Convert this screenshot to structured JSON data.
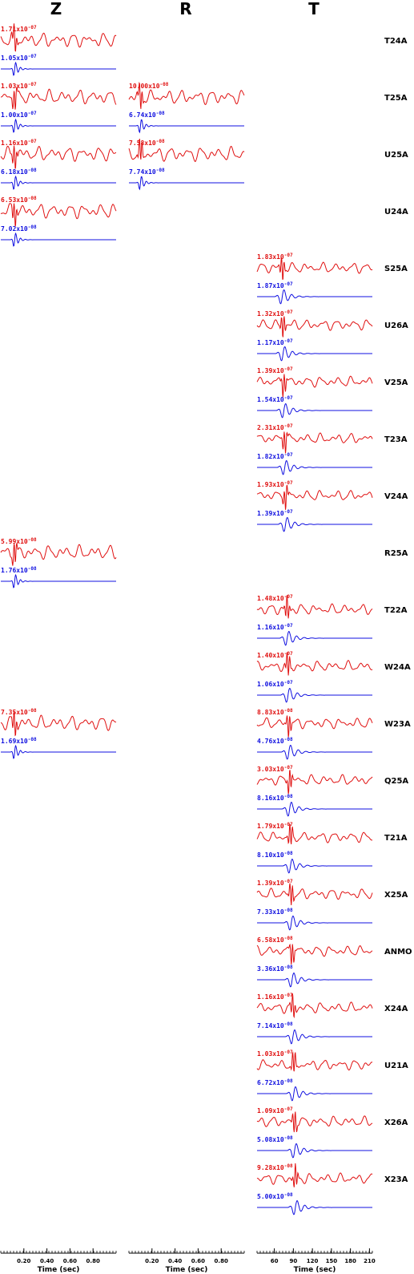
{
  "columns": [
    "Z",
    "R",
    "T"
  ],
  "stations": [
    "T24A",
    "T25A",
    "U25A",
    "U24A",
    "S25A",
    "U26A",
    "V25A",
    "T23A",
    "V24A",
    "R25A",
    "T22A",
    "W24A",
    "W23A",
    "Q25A",
    "T21A",
    "X25A",
    "ANMO",
    "X24A",
    "U21A",
    "X26A",
    "X23A"
  ],
  "colors": {
    "data": "#e01010",
    "synthetic": "#1010e0",
    "axis": "#000000"
  },
  "chart_data": {
    "type": "line",
    "axes": [
      {
        "column": "Z",
        "xlabel": "Time (sec)",
        "tick_labels": [
          "0.20",
          "0.40",
          "0.60",
          "0.80"
        ]
      },
      {
        "column": "R",
        "xlabel": "Time (sec)",
        "tick_labels": [
          "0.20",
          "0.40",
          "0.60",
          "0.80"
        ]
      },
      {
        "column": "T",
        "xlabel": "Time (sec)",
        "tick_labels": [
          "60",
          "90",
          "120",
          "150",
          "180",
          "210"
        ]
      }
    ],
    "legend": {
      "data_color": "#e01010",
      "synthetic_color": "#1010e0"
    },
    "traces": [
      {
        "station": "T24A",
        "column": "Z",
        "data_amp": {
          "m": "1.71",
          "e": "-07"
        },
        "syn_amp": {
          "m": "1.05",
          "e": "-07"
        }
      },
      {
        "station": "T25A",
        "column": "Z",
        "data_amp": {
          "m": "1.03",
          "e": "-07"
        },
        "syn_amp": {
          "m": "1.00",
          "e": "-07"
        }
      },
      {
        "station": "T25A",
        "column": "R",
        "data_amp": {
          "m": "10.00",
          "e": "-08"
        },
        "syn_amp": {
          "m": "6.74",
          "e": "-08"
        }
      },
      {
        "station": "U25A",
        "column": "Z",
        "data_amp": {
          "m": "1.16",
          "e": "-07"
        },
        "syn_amp": {
          "m": "6.18",
          "e": "-08"
        }
      },
      {
        "station": "U25A",
        "column": "R",
        "data_amp": {
          "m": "7.58",
          "e": "-08"
        },
        "syn_amp": {
          "m": "7.74",
          "e": "-08"
        }
      },
      {
        "station": "U24A",
        "column": "Z",
        "data_amp": {
          "m": "6.53",
          "e": "-08"
        },
        "syn_amp": {
          "m": "7.02",
          "e": "-08"
        }
      },
      {
        "station": "S25A",
        "column": "T",
        "data_amp": {
          "m": "1.83",
          "e": "-07"
        },
        "syn_amp": {
          "m": "1.87",
          "e": "-07"
        }
      },
      {
        "station": "U26A",
        "column": "T",
        "data_amp": {
          "m": "1.32",
          "e": "-07"
        },
        "syn_amp": {
          "m": "1.17",
          "e": "-07"
        }
      },
      {
        "station": "V25A",
        "column": "T",
        "data_amp": {
          "m": "1.39",
          "e": "-07"
        },
        "syn_amp": {
          "m": "1.54",
          "e": "-07"
        }
      },
      {
        "station": "T23A",
        "column": "T",
        "data_amp": {
          "m": "2.31",
          "e": "-07"
        },
        "syn_amp": {
          "m": "1.82",
          "e": "-07"
        }
      },
      {
        "station": "V24A",
        "column": "T",
        "data_amp": {
          "m": "1.93",
          "e": "-07"
        },
        "syn_amp": {
          "m": "1.39",
          "e": "-07"
        }
      },
      {
        "station": "R25A",
        "column": "Z",
        "data_amp": {
          "m": "5.99",
          "e": "-08"
        },
        "syn_amp": {
          "m": "1.76",
          "e": "-08"
        }
      },
      {
        "station": "T22A",
        "column": "T",
        "data_amp": {
          "m": "1.48",
          "e": "-07"
        },
        "syn_amp": {
          "m": "1.16",
          "e": "-07"
        }
      },
      {
        "station": "W24A",
        "column": "T",
        "data_amp": {
          "m": "1.40",
          "e": "-07"
        },
        "syn_amp": {
          "m": "1.06",
          "e": "-07"
        }
      },
      {
        "station": "W23A",
        "column": "Z",
        "data_amp": {
          "m": "7.35",
          "e": "-08"
        },
        "syn_amp": {
          "m": "1.69",
          "e": "-08"
        }
      },
      {
        "station": "W23A",
        "column": "T",
        "data_amp": {
          "m": "8.83",
          "e": "-08"
        },
        "syn_amp": {
          "m": "4.76",
          "e": "-08"
        }
      },
      {
        "station": "Q25A",
        "column": "T",
        "data_amp": {
          "m": "3.03",
          "e": "-07"
        },
        "syn_amp": {
          "m": "8.16",
          "e": "-08"
        }
      },
      {
        "station": "T21A",
        "column": "T",
        "data_amp": {
          "m": "1.79",
          "e": "-07"
        },
        "syn_amp": {
          "m": "8.10",
          "e": "-08"
        }
      },
      {
        "station": "X25A",
        "column": "T",
        "data_amp": {
          "m": "1.39",
          "e": "-07"
        },
        "syn_amp": {
          "m": "7.33",
          "e": "-08"
        }
      },
      {
        "station": "ANMO",
        "column": "T",
        "data_amp": {
          "m": "6.58",
          "e": "-08"
        },
        "syn_amp": {
          "m": "3.36",
          "e": "-08"
        }
      },
      {
        "station": "X24A",
        "column": "T",
        "data_amp": {
          "m": "1.16",
          "e": "-07"
        },
        "syn_amp": {
          "m": "7.14",
          "e": "-08"
        }
      },
      {
        "station": "U21A",
        "column": "T",
        "data_amp": {
          "m": "1.03",
          "e": "-07"
        },
        "syn_amp": {
          "m": "6.72",
          "e": "-08"
        }
      },
      {
        "station": "X26A",
        "column": "T",
        "data_amp": {
          "m": "1.09",
          "e": "-07"
        },
        "syn_amp": {
          "m": "5.08",
          "e": "-08"
        }
      },
      {
        "station": "X23A",
        "column": "T",
        "data_amp": {
          "m": "9.28",
          "e": "-08"
        },
        "syn_amp": {
          "m": "5.00",
          "e": "-08"
        }
      }
    ]
  }
}
